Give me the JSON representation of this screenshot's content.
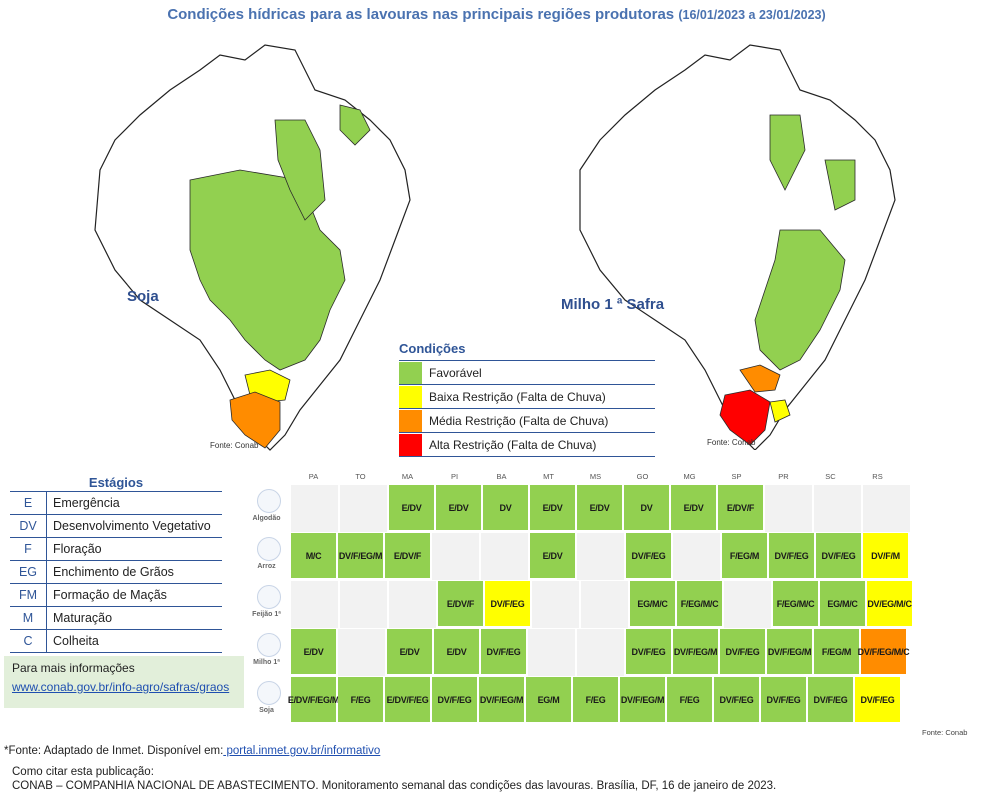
{
  "title": {
    "main": "Condições hídricas para as lavouras nas principais regiões produtoras",
    "dates": "(16/01/2023 a 23/01/2023)"
  },
  "maps": [
    {
      "crop": "Soja",
      "source": "Fonte: Conab"
    },
    {
      "crop": "Milho 1 ª Safra",
      "source": "Fonte: Conab"
    }
  ],
  "legend": {
    "title": "Condições",
    "items": [
      {
        "label": "Favorável",
        "color": "#92d050"
      },
      {
        "label": "Baixa Restrição (Falta de Chuva)",
        "color": "#ffff00"
      },
      {
        "label": "Média Restrição (Falta de Chuva)",
        "color": "#ff8c00"
      },
      {
        "label": "Alta Restrição (Falta de Chuva)",
        "color": "#ff0000"
      }
    ]
  },
  "stages": {
    "title": "Estágios",
    "items": [
      {
        "code": "E",
        "desc": "Emergência"
      },
      {
        "code": "DV",
        "desc": "Desenvolvimento Vegetativo"
      },
      {
        "code": "F",
        "desc": "Floração"
      },
      {
        "code": "EG",
        "desc": "Enchimento de Grãos"
      },
      {
        "code": "FM",
        "desc": "Formação de Maçãs"
      },
      {
        "code": "M",
        "desc": "Maturação"
      },
      {
        "code": "C",
        "desc": "Colheita"
      }
    ]
  },
  "info": {
    "title": "Para mais informações",
    "link": "www.conab.gov.br/info-agro/safras/graos"
  },
  "table": {
    "states": [
      "PA",
      "TO",
      "MA",
      "PI",
      "BA",
      "MT",
      "MS",
      "GO",
      "MG",
      "SP",
      "PR",
      "SC",
      "RS"
    ],
    "colors": {
      "g": "#92d050",
      "y": "#ffff00",
      "o": "#ff8c00",
      "w": "#f2f2f2"
    },
    "rows": [
      {
        "crop": "Algodão",
        "icon": "cotton-icon",
        "cells": [
          {
            "t": "",
            "c": "w"
          },
          {
            "t": "",
            "c": "w"
          },
          {
            "t": "E/DV",
            "c": "g"
          },
          {
            "t": "E/DV",
            "c": "g"
          },
          {
            "t": "DV",
            "c": "g"
          },
          {
            "t": "E/DV",
            "c": "g"
          },
          {
            "t": "E/DV",
            "c": "g"
          },
          {
            "t": "DV",
            "c": "g"
          },
          {
            "t": "E/DV",
            "c": "g"
          },
          {
            "t": "E/DV/F",
            "c": "g"
          },
          {
            "t": "",
            "c": "w"
          },
          {
            "t": "",
            "c": "w"
          },
          {
            "t": "",
            "c": "w"
          }
        ]
      },
      {
        "crop": "Arroz",
        "icon": "rice-icon",
        "cells": [
          {
            "t": "M/C",
            "c": "g"
          },
          {
            "t": "DV/F/EG/M",
            "c": "g"
          },
          {
            "t": "E/DV/F",
            "c": "g"
          },
          {
            "t": "",
            "c": "w"
          },
          {
            "t": "",
            "c": "w"
          },
          {
            "t": "E/DV",
            "c": "g"
          },
          {
            "t": "",
            "c": "w"
          },
          {
            "t": "DV/F/EG",
            "c": "g"
          },
          {
            "t": "",
            "c": "w"
          },
          {
            "t": "F/EG/M",
            "c": "g"
          },
          {
            "t": "DV/F/EG",
            "c": "g"
          },
          {
            "t": "DV/F/EG",
            "c": "g"
          },
          {
            "t": "DV/F/M",
            "c": "y"
          }
        ]
      },
      {
        "crop": "Feijão 1ª",
        "icon": "bean-icon",
        "cells": [
          {
            "t": "",
            "c": "w"
          },
          {
            "t": "",
            "c": "w"
          },
          {
            "t": "",
            "c": "w"
          },
          {
            "t": "E/DV/F",
            "c": "g"
          },
          {
            "t": "DV/F/EG",
            "c": "y"
          },
          {
            "t": "",
            "c": "w"
          },
          {
            "t": "",
            "c": "w"
          },
          {
            "t": "EG/M/C",
            "c": "g"
          },
          {
            "t": "F/EG/M/C",
            "c": "g"
          },
          {
            "t": "",
            "c": "w"
          },
          {
            "t": "F/EG/M/C",
            "c": "g"
          },
          {
            "t": "EG/M/C",
            "c": "g"
          },
          {
            "t": "DV/EG/M/C",
            "c": "y"
          }
        ]
      },
      {
        "crop": "Milho 1ª",
        "icon": "corn-icon",
        "cells": [
          {
            "t": "E/DV",
            "c": "g"
          },
          {
            "t": "",
            "c": "w"
          },
          {
            "t": "E/DV",
            "c": "g"
          },
          {
            "t": "E/DV",
            "c": "g"
          },
          {
            "t": "DV/F/EG",
            "c": "g"
          },
          {
            "t": "",
            "c": "w"
          },
          {
            "t": "",
            "c": "w"
          },
          {
            "t": "DV/F/EG",
            "c": "g"
          },
          {
            "t": "DV/F/EG/M",
            "c": "g"
          },
          {
            "t": "DV/F/EG",
            "c": "g"
          },
          {
            "t": "DV/F/EG/M",
            "c": "g"
          },
          {
            "t": "F/EG/M",
            "c": "g"
          },
          {
            "t": "DV/F/EG/M/C",
            "c": "o"
          }
        ]
      },
      {
        "crop": "Soja",
        "icon": "soy-icon",
        "cells": [
          {
            "t": "E/DV/F/EG/M",
            "c": "g"
          },
          {
            "t": "F/EG",
            "c": "g"
          },
          {
            "t": "E/DV/F/EG",
            "c": "g"
          },
          {
            "t": "DV/F/EG",
            "c": "g"
          },
          {
            "t": "DV/F/EG/M",
            "c": "g"
          },
          {
            "t": "EG/M",
            "c": "g"
          },
          {
            "t": "F/EG",
            "c": "g"
          },
          {
            "t": "DV/F/EG/M",
            "c": "g"
          },
          {
            "t": "F/EG",
            "c": "g"
          },
          {
            "t": "DV/F/EG",
            "c": "g"
          },
          {
            "t": "DV/F/EG",
            "c": "g"
          },
          {
            "t": "DV/F/EG",
            "c": "g"
          },
          {
            "t": "DV/F/EG",
            "c": "y"
          }
        ]
      }
    ],
    "source": "Fonte: Conab"
  },
  "footer": {
    "source_prefix": "*Fonte: Adaptado de Inmet. Disponível em:",
    "source_link": " portal.inmet.gov.br/informativo",
    "cite_title": "Como citar esta publicação:",
    "cite_text": "CONAB – COMPANHIA NACIONAL DE ABASTECIMENTO. Monitoramento semanal das condições das lavouras. Brasília, DF, 16 de janeiro de 2023."
  }
}
